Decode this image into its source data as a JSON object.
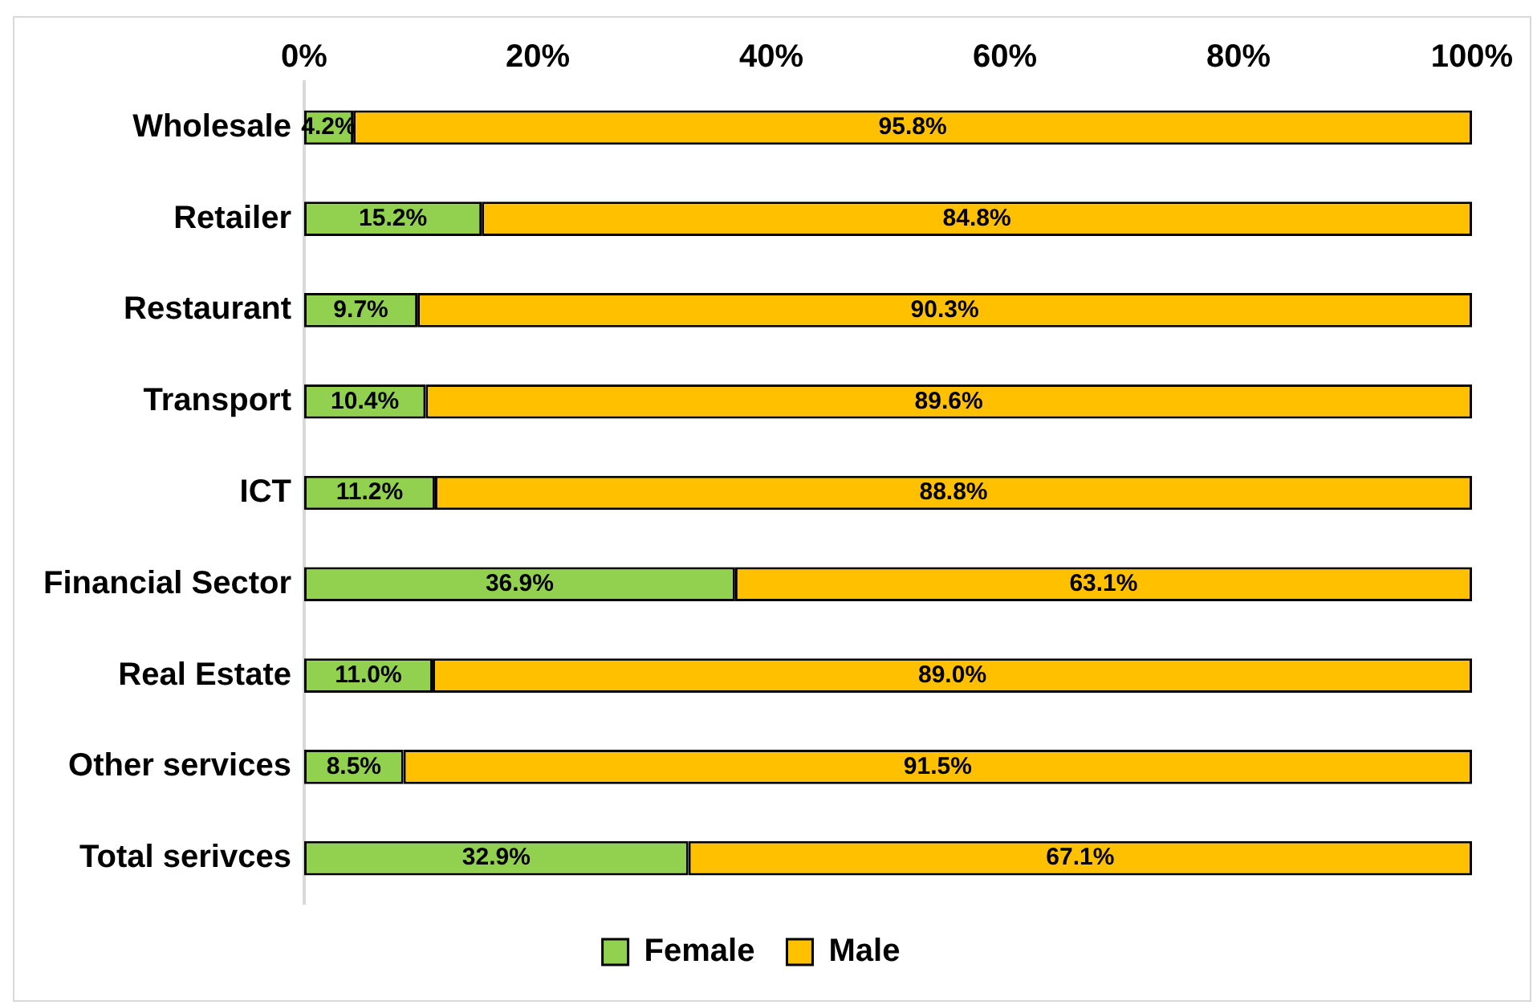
{
  "chart_data": {
    "type": "bar",
    "orientation": "horizontal",
    "stacked": true,
    "categories": [
      "Wholesale",
      "Retailer",
      "Restaurant",
      "Transport",
      "ICT",
      "Financial Sector",
      "Real Estate",
      "Other services",
      "Total serivces"
    ],
    "series": [
      {
        "name": "Female",
        "color": "#92d050",
        "values": [
          4.2,
          15.2,
          9.7,
          10.4,
          11.2,
          36.9,
          11.0,
          8.5,
          32.9
        ],
        "value_labels": [
          "4.2%",
          "15.2%",
          "9.7%",
          "10.4%",
          "11.2%",
          "36.9%",
          "11.0%",
          "8.5%",
          "32.9%"
        ]
      },
      {
        "name": "Male",
        "color": "#ffc000",
        "values": [
          95.8,
          84.8,
          90.3,
          89.6,
          88.8,
          63.1,
          89.0,
          91.5,
          67.1
        ],
        "value_labels": [
          "95.8%",
          "84.8%",
          "90.3%",
          "89.6%",
          "88.8%",
          "63.1%",
          "89.0%",
          "91.5%",
          "67.1%"
        ]
      }
    ],
    "xlim": [
      0,
      100
    ],
    "xticks": [
      {
        "value": 0,
        "label": "0%"
      },
      {
        "value": 20,
        "label": "20%"
      },
      {
        "value": 40,
        "label": "40%"
      },
      {
        "value": 60,
        "label": "60%"
      },
      {
        "value": 80,
        "label": "80%"
      },
      {
        "value": 100,
        "label": "100%"
      }
    ],
    "grid": false,
    "legend": "bottom"
  }
}
